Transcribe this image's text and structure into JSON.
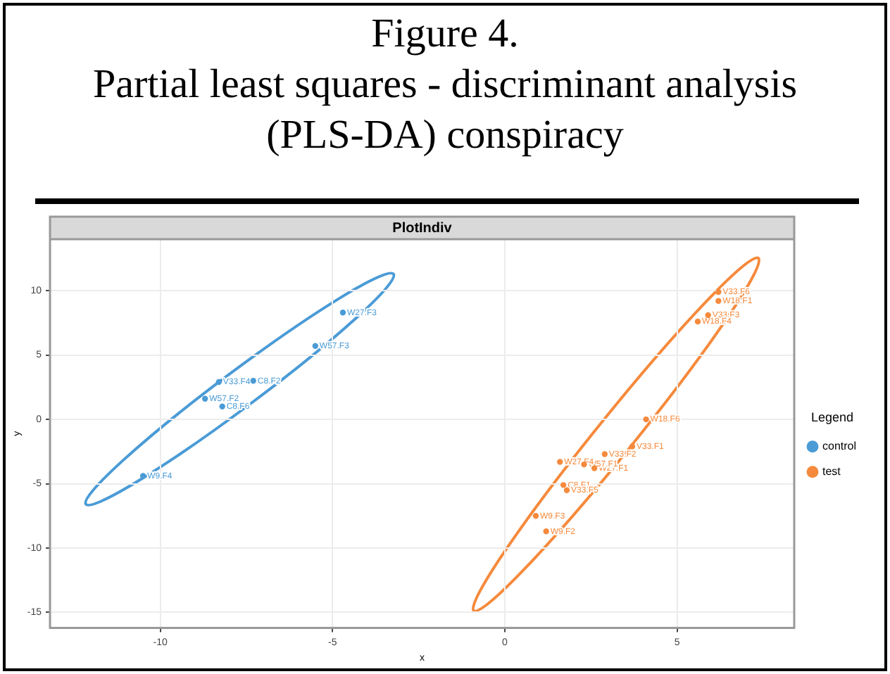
{
  "chart_data": {
    "type": "scatter",
    "title": "Figure 4. Partial least squares - discriminant analysis (PLS-DA) conspiracy",
    "subtitle": "PlotIndiv",
    "xlabel": "x",
    "ylabel": "y",
    "legend_title": "Legend",
    "legend": "right",
    "grid": true,
    "marker": "circle",
    "xlim": [
      -13.2,
      8.4
    ],
    "xticks": [
      -10,
      -5,
      0,
      5
    ],
    "ylim": [
      -16.2,
      14
    ],
    "yticks": [
      -15,
      -10,
      -5,
      0,
      5,
      10
    ],
    "series": [
      {
        "name": "control",
        "type": "scatter",
        "color": "#4a9bd6",
        "x": [
          -4.7,
          -5.5,
          -8.3,
          -7.3,
          -8.7,
          -8.2,
          -10.5
        ],
        "values": [
          8.3,
          5.7,
          2.9,
          3,
          1.6,
          1,
          -4.4
        ],
        "value_labels": [
          "W27.F3",
          "W57.F3",
          "V33.F4",
          "C8.F2",
          "W57.F2",
          "C8.F6",
          "W9.F4"
        ]
      },
      {
        "name": "test",
        "type": "scatter",
        "color": "#f58a3c",
        "x": [
          6.2,
          6.2,
          5.9,
          5.6,
          4.1,
          3.7,
          2.9,
          2.6,
          2.3,
          1.6,
          1.7,
          1.8,
          0.9,
          1.2
        ],
        "values": [
          9.9,
          9.2,
          8.1,
          7.6,
          0,
          -2.1,
          -2.7,
          -3.8,
          -3.5,
          -3.3,
          -5.1,
          -5.5,
          -7.5,
          -8.7
        ],
        "value_labels": [
          "V33.F6",
          "W18.F1",
          "V33.F3",
          "W18.F4",
          "W18.F6",
          "V33.F1",
          "V33.F2",
          "W27.F1",
          "W57.F1",
          "W27.F4",
          "C8.F1",
          "V33.F5",
          "W9.F3",
          "W9.F2"
        ]
      }
    ]
  }
}
